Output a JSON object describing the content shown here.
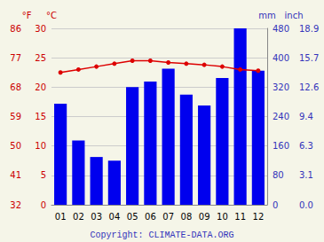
{
  "chart_data": {
    "type": "bar",
    "categories": [
      "01",
      "02",
      "03",
      "04",
      "05",
      "06",
      "07",
      "08",
      "09",
      "10",
      "11",
      "12"
    ],
    "series": [
      {
        "type": "bar",
        "axis": "y2",
        "color": "#0000ee",
        "values": [
          275,
          175,
          130,
          120,
          320,
          335,
          370,
          300,
          270,
          345,
          480,
          365
        ]
      },
      {
        "type": "line",
        "color": "#dd0000",
        "marker": "o",
        "values": [
          22.5,
          23.0,
          23.5,
          24.0,
          24.5,
          24.5,
          24.2,
          24.0,
          23.8,
          23.5,
          23.0,
          22.8
        ]
      }
    ],
    "ylabel": "°C",
    "ylim": [
      0,
      30
    ],
    "yticks": [
      0,
      5,
      10,
      15,
      20,
      25,
      30
    ],
    "ylabel_f": "°F",
    "yticks_f": [
      {
        "value": 0,
        "label": "32"
      },
      {
        "value": 5,
        "label": "41"
      },
      {
        "value": 10,
        "label": "50"
      },
      {
        "value": 15,
        "label": "59"
      },
      {
        "value": 20,
        "label": "68"
      },
      {
        "value": 25,
        "label": "77"
      },
      {
        "value": 30,
        "label": "86"
      }
    ],
    "y2label": "mm",
    "y2lim": [
      0,
      480
    ],
    "y2ticks": [
      0,
      80,
      160,
      240,
      320,
      400,
      480
    ],
    "y2label_inch": "inch",
    "y2ticks_inch": [
      {
        "value": 0,
        "label": "0.0"
      },
      {
        "value": 80,
        "label": "3.1"
      },
      {
        "value": 160,
        "label": "6.3"
      },
      {
        "value": 240,
        "label": "9.4"
      },
      {
        "value": 320,
        "label": "12.6"
      },
      {
        "value": 400,
        "label": "15.7"
      },
      {
        "value": 480,
        "label": "18.9"
      }
    ],
    "grid": true,
    "grid_color": "#cccccc",
    "background_color": "#f5f5e8",
    "y_tick_color": "#cc0000",
    "y2_tick_color": "#3333bb",
    "caption": "Copyright: CLIMATE-DATA.ORG"
  }
}
